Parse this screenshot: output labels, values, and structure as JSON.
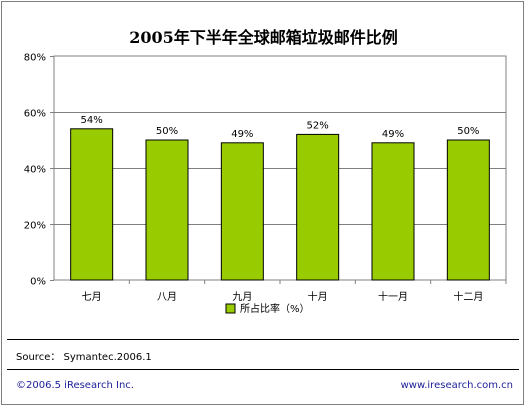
{
  "chart_data": {
    "type": "bar",
    "title": "2005年下半年全球邮箱垃圾邮件比例",
    "categories": [
      "七月",
      "八月",
      "九月",
      "十月",
      "十一月",
      "十二月"
    ],
    "series": [
      {
        "name": "所占比率（%）",
        "values": [
          54,
          50,
          49,
          52,
          49,
          50
        ],
        "color": "#99cc00"
      }
    ],
    "data_labels": [
      "54%",
      "50%",
      "49%",
      "52%",
      "49%",
      "50%"
    ],
    "y_ticks": [
      "0%",
      "20%",
      "40%",
      "60%",
      "80%"
    ],
    "y_tick_values": [
      0,
      20,
      40,
      60,
      80
    ],
    "ylim": [
      0,
      80
    ],
    "grid": true,
    "legend_position": "bottom-center",
    "plot_background": "#ffffff"
  },
  "source": "Source： Symantec.2006.1",
  "footer": {
    "copyright": "©2006.5 iResearch Inc.",
    "website": "www.iresearch.com.cn"
  }
}
